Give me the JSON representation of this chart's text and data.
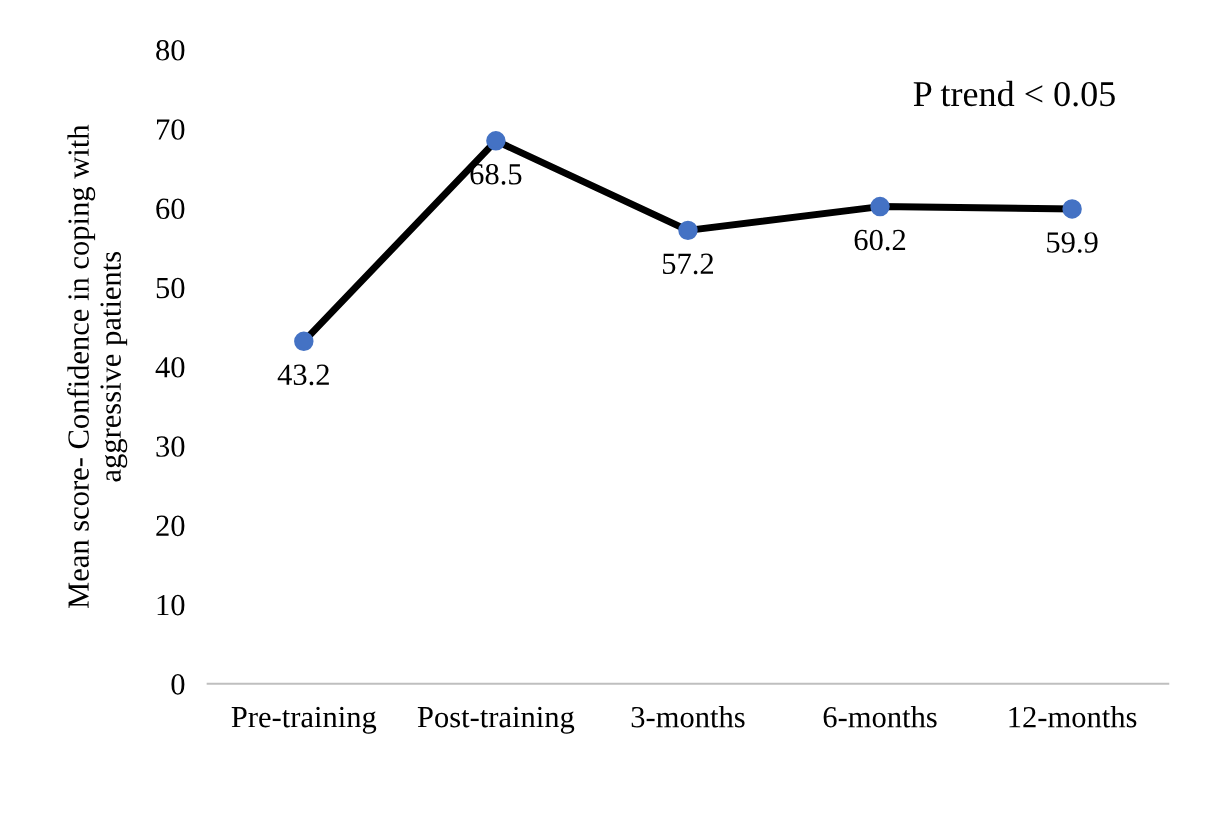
{
  "chart_data": {
    "type": "line",
    "categories": [
      "Pre-training",
      "Post-training",
      "3-months",
      "6-months",
      "12-months"
    ],
    "series": [
      {
        "color": "#000000",
        "values": [
          43.2,
          68.5,
          57.2,
          60.2,
          59.9
        ]
      }
    ],
    "ylabel": "Mean score- Confidence in coping with\naggressive patients",
    "ylim": [
      0,
      80
    ],
    "yticks": [
      0,
      10,
      20,
      30,
      40,
      50,
      60,
      70,
      80
    ],
    "annotations": [
      "P trend < 0.05"
    ],
    "data_labels": true,
    "marker": "circle",
    "grid": false,
    "legend": false
  }
}
